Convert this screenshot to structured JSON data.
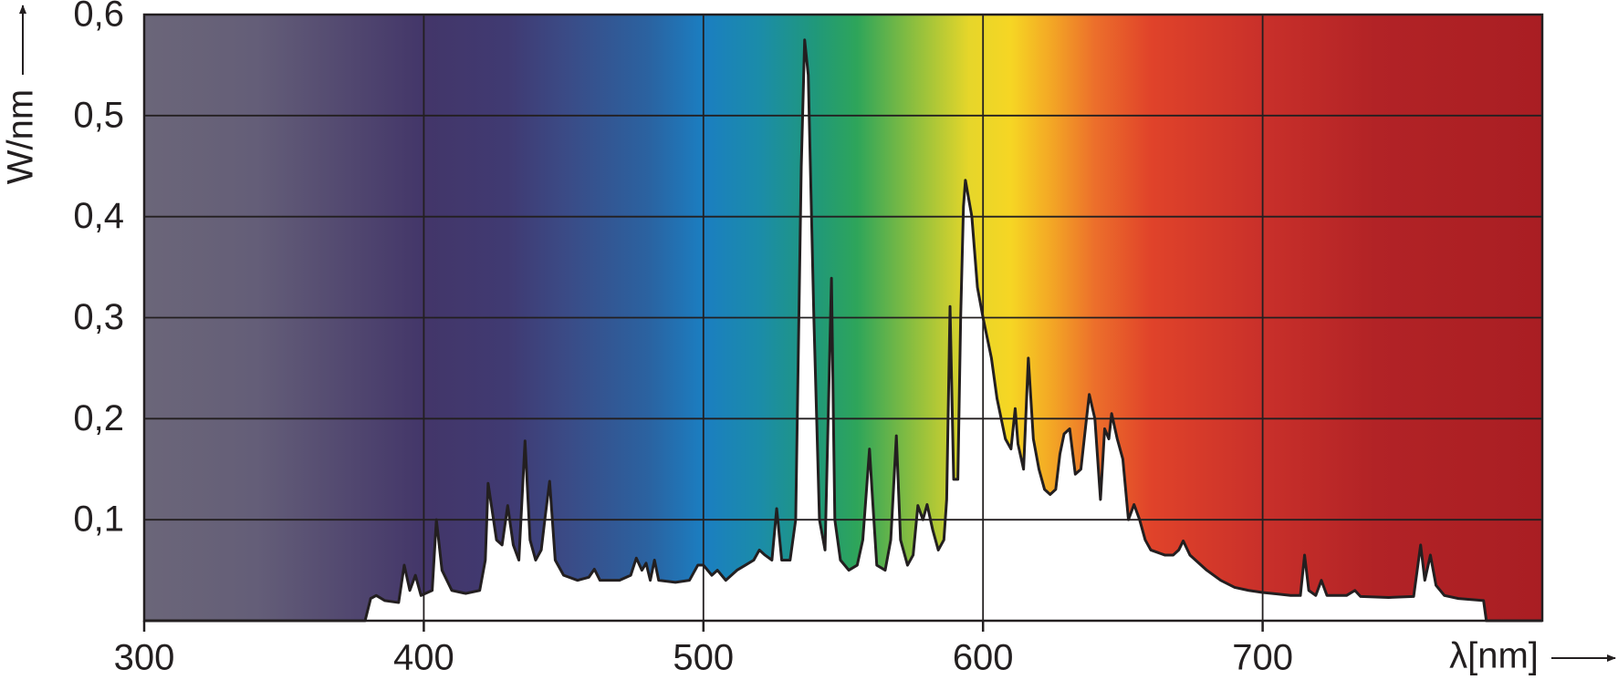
{
  "chart_data": {
    "type": "line",
    "xlabel": "λ[nm]",
    "ylabel": "W/nm",
    "x": [
      300,
      379,
      381,
      383,
      386,
      391,
      393,
      395,
      397,
      399,
      403,
      404.5,
      406.5,
      410,
      415,
      420,
      422,
      423,
      426,
      428,
      430,
      432,
      434,
      436.2,
      438,
      440,
      442,
      443.5,
      445,
      447,
      450,
      455,
      459,
      461,
      463,
      470,
      474,
      476,
      478,
      479.5,
      481,
      482.5,
      484,
      490,
      495,
      498,
      500,
      503,
      505,
      508,
      512,
      515,
      518,
      520,
      522,
      524.5,
      526.2,
      528,
      531,
      533,
      535,
      536.2,
      537.5,
      539.5,
      541.5,
      543.5,
      545.8,
      547,
      549,
      552,
      555,
      557,
      559.4,
      560.5,
      562,
      565,
      567,
      569,
      570.5,
      573,
      575,
      576.7,
      578.5,
      580,
      582,
      584,
      586,
      587,
      588.2,
      589.5,
      591,
      592,
      593,
      593.7,
      596,
      598,
      600,
      603,
      605,
      608,
      610,
      611.5,
      612.5,
      614.5,
      616.2,
      618,
      620,
      622,
      624,
      626,
      627.5,
      629,
      631,
      633,
      635,
      637,
      638,
      640,
      642,
      643.5,
      645,
      646,
      648,
      650,
      652,
      654,
      656,
      658,
      660,
      665,
      668,
      670,
      671.6,
      674,
      680,
      685,
      690,
      695,
      700,
      710,
      713.5,
      715,
      716.5,
      719,
      721,
      723,
      730,
      733,
      735,
      745,
      754,
      756.5,
      758,
      760,
      762,
      765,
      770,
      779,
      780,
      800
    ],
    "values": [
      0,
      0,
      0.022,
      0.025,
      0.02,
      0.018,
      0.055,
      0.03,
      0.045,
      0.025,
      0.03,
      0.1,
      0.05,
      0.03,
      0.027,
      0.03,
      0.06,
      0.136,
      0.08,
      0.075,
      0.114,
      0.075,
      0.06,
      0.178,
      0.08,
      0.06,
      0.07,
      0.105,
      0.138,
      0.06,
      0.045,
      0.04,
      0.043,
      0.051,
      0.04,
      0.04,
      0.045,
      0.062,
      0.05,
      0.057,
      0.04,
      0.06,
      0.04,
      0.038,
      0.04,
      0.055,
      0.055,
      0.045,
      0.05,
      0.04,
      0.05,
      0.055,
      0.06,
      0.07,
      0.065,
      0.06,
      0.111,
      0.06,
      0.06,
      0.1,
      0.45,
      0.575,
      0.54,
      0.3,
      0.1,
      0.07,
      0.339,
      0.1,
      0.06,
      0.05,
      0.055,
      0.08,
      0.17,
      0.12,
      0.055,
      0.05,
      0.08,
      0.183,
      0.08,
      0.055,
      0.065,
      0.114,
      0.1,
      0.115,
      0.09,
      0.07,
      0.08,
      0.12,
      0.311,
      0.14,
      0.14,
      0.3,
      0.41,
      0.436,
      0.4,
      0.33,
      0.3,
      0.26,
      0.22,
      0.18,
      0.17,
      0.21,
      0.175,
      0.15,
      0.26,
      0.18,
      0.15,
      0.13,
      0.125,
      0.13,
      0.165,
      0.185,
      0.19,
      0.145,
      0.15,
      0.2,
      0.224,
      0.2,
      0.12,
      0.19,
      0.18,
      0.205,
      0.18,
      0.16,
      0.1,
      0.115,
      0.1,
      0.08,
      0.07,
      0.065,
      0.065,
      0.07,
      0.079,
      0.065,
      0.05,
      0.04,
      0.033,
      0.03,
      0.028,
      0.025,
      0.025,
      0.065,
      0.03,
      0.025,
      0.04,
      0.025,
      0.025,
      0.03,
      0.024,
      0.023,
      0.024,
      0.075,
      0.04,
      0.065,
      0.035,
      0.025,
      0.022,
      0.02,
      0,
      0
    ],
    "color": "#231f20",
    "fill": "#ffffff",
    "xlim": [
      300,
      800
    ],
    "xticks": [
      300,
      400,
      500,
      600,
      700
    ],
    "ylim": [
      0,
      0.6
    ],
    "yticks": [
      {
        "value": 0.1,
        "label": "0,1"
      },
      {
        "value": 0.2,
        "label": "0,2"
      },
      {
        "value": 0.3,
        "label": "0,3"
      },
      {
        "value": 0.4,
        "label": "0,4"
      },
      {
        "value": 0.5,
        "label": "0,5"
      },
      {
        "value": 0.6,
        "label": "0,6"
      }
    ],
    "grid": true
  }
}
